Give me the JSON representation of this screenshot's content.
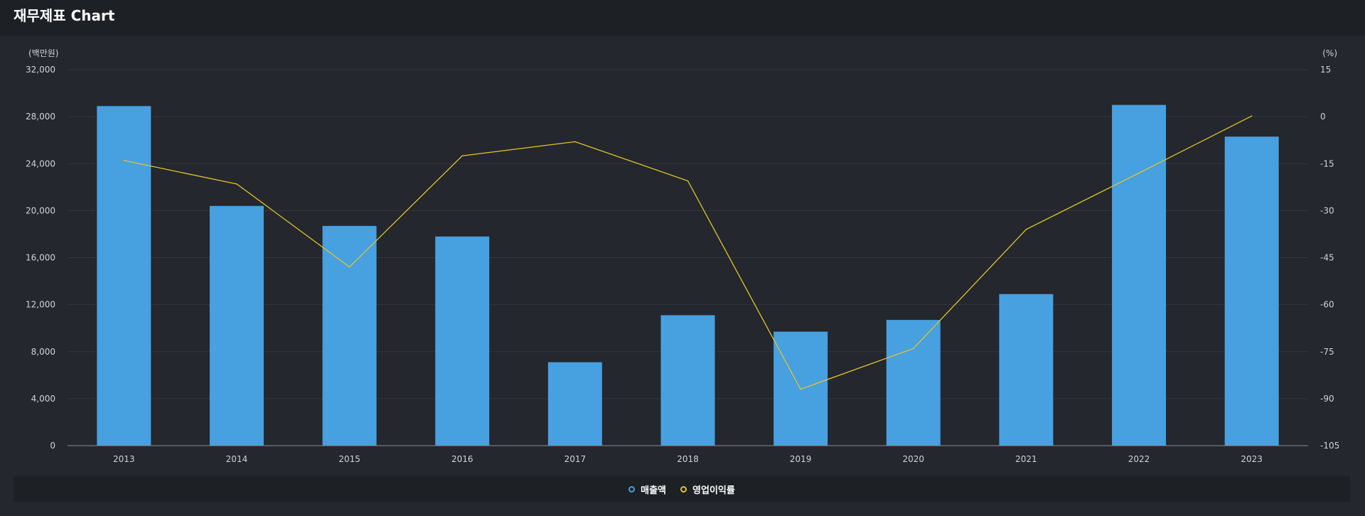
{
  "header": {
    "title": "재무제표 Chart"
  },
  "chart_data": {
    "type": "bar+line",
    "categories": [
      "2013",
      "2014",
      "2015",
      "2016",
      "2017",
      "2018",
      "2019",
      "2020",
      "2021",
      "2022",
      "2023"
    ],
    "series": [
      {
        "name": "매출액",
        "type": "bar",
        "axis": "left",
        "color": "#47a0e0",
        "values": [
          28900,
          20400,
          18700,
          17800,
          7100,
          11100,
          9700,
          10700,
          12900,
          29000,
          26300
        ]
      },
      {
        "name": "영업이익률",
        "type": "line",
        "axis": "right",
        "color": "#e3c42a",
        "values": [
          -14.0,
          -21.5,
          -48.0,
          -12.5,
          -8.0,
          -20.5,
          -87.0,
          -74.0,
          -36.0,
          -18.0,
          0.2
        ]
      }
    ],
    "y_left": {
      "label": "(백만원)",
      "min": 0,
      "max": 32000,
      "ticks": [
        "0",
        "4,000",
        "8,000",
        "12,000",
        "16,000",
        "20,000",
        "24,000",
        "28,000",
        "32,000"
      ],
      "tick_values": [
        0,
        4000,
        8000,
        12000,
        16000,
        20000,
        24000,
        28000,
        32000
      ]
    },
    "y_right": {
      "label": "(%)",
      "min": -105,
      "max": 15,
      "ticks": [
        "-105",
        "-90",
        "-75",
        "-60",
        "-45",
        "-30",
        "-15",
        "0",
        "15"
      ],
      "tick_values": [
        -105,
        -90,
        -75,
        -60,
        -45,
        -30,
        -15,
        0,
        15
      ]
    },
    "legend": [
      "매출액",
      "영업이익률"
    ],
    "grid": true,
    "legend_position": "bottom"
  }
}
